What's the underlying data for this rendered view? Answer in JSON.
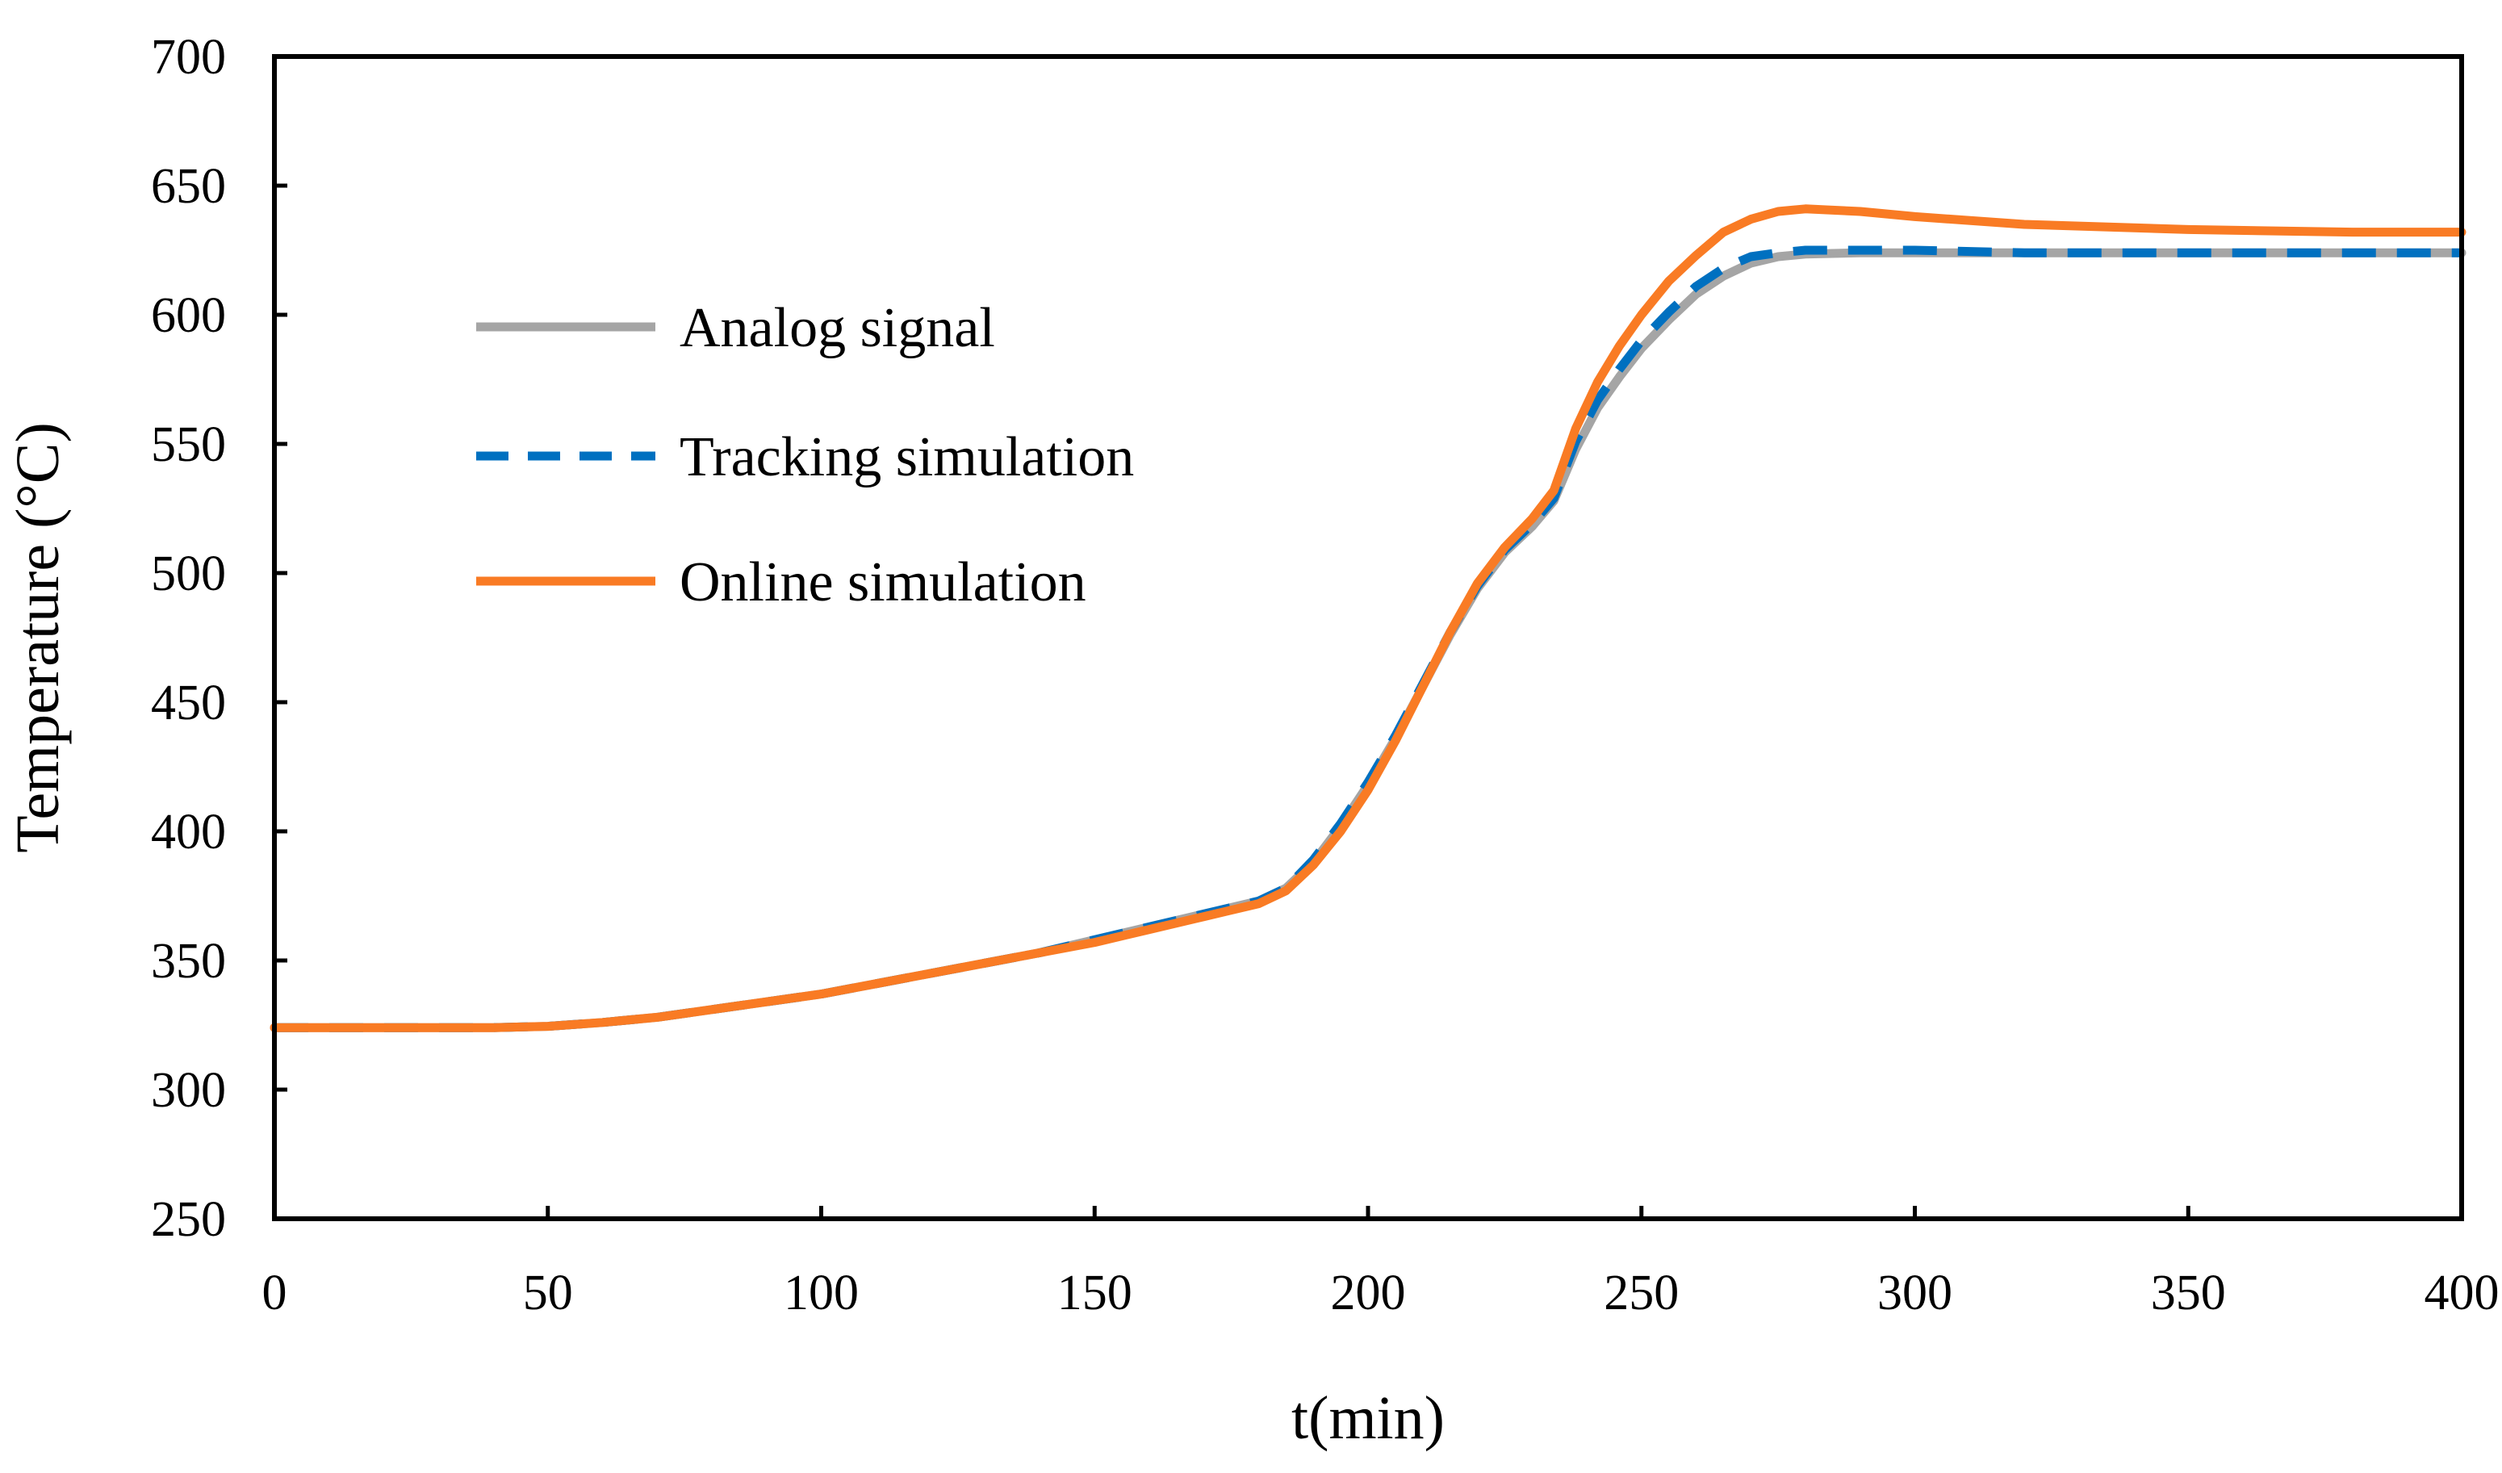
{
  "chart_data": {
    "type": "line",
    "title": "",
    "xlabel": "t(min)",
    "ylabel": "Temperature (°C)",
    "xlim": [
      0,
      400
    ],
    "ylim": [
      250,
      700
    ],
    "xticks": [
      0,
      50,
      100,
      150,
      200,
      250,
      300,
      350,
      400
    ],
    "yticks": [
      250,
      300,
      350,
      400,
      450,
      500,
      550,
      600,
      650,
      700
    ],
    "grid": false,
    "legend_position": "upper-left",
    "series": [
      {
        "name": "Analog signal",
        "color": "#A5A5A5",
        "style": "solid",
        "x": [
          0,
          20,
          40,
          50,
          60,
          70,
          80,
          90,
          100,
          110,
          120,
          130,
          140,
          150,
          160,
          170,
          180,
          185,
          190,
          195,
          200,
          205,
          210,
          215,
          220,
          225,
          230,
          234,
          238,
          242,
          246,
          250,
          255,
          260,
          265,
          270,
          275,
          280,
          290,
          300,
          320,
          350,
          380,
          400
        ],
        "y": [
          324,
          324,
          324,
          324.5,
          326,
          328,
          331,
          334,
          337,
          341,
          345,
          349,
          353,
          358,
          363,
          368,
          373,
          378,
          388,
          402,
          418,
          436,
          456,
          476,
          494,
          508,
          518,
          528,
          548,
          564,
          576,
          587,
          598,
          608,
          615,
          620,
          622.5,
          623.5,
          624,
          624,
          624,
          624,
          624,
          624
        ]
      },
      {
        "name": "Tracking simulation",
        "color": "#0070C0",
        "style": "dashed",
        "x": [
          0,
          20,
          40,
          50,
          60,
          70,
          80,
          90,
          100,
          110,
          120,
          130,
          140,
          150,
          160,
          170,
          180,
          185,
          190,
          195,
          200,
          205,
          210,
          215,
          220,
          225,
          230,
          234,
          238,
          242,
          246,
          250,
          255,
          260,
          265,
          270,
          275,
          280,
          290,
          300,
          320,
          350,
          380,
          400
        ],
        "y": [
          324,
          324,
          324,
          324.5,
          326,
          328,
          331,
          334,
          337,
          341,
          345,
          349,
          353,
          358,
          363,
          368,
          373,
          378,
          389,
          403,
          419,
          437,
          457,
          477,
          495,
          509,
          519,
          529,
          551,
          567,
          579,
          590,
          601,
          611,
          618,
          622.5,
          624,
          625,
          625,
          625,
          624,
          624,
          624,
          624
        ]
      },
      {
        "name": "Online simulation",
        "color": "#F97B24",
        "style": "solid",
        "x": [
          0,
          20,
          40,
          50,
          60,
          70,
          80,
          90,
          100,
          110,
          120,
          130,
          140,
          150,
          160,
          170,
          180,
          185,
          190,
          195,
          200,
          205,
          210,
          215,
          220,
          225,
          230,
          234,
          238,
          242,
          246,
          250,
          255,
          260,
          265,
          270,
          275,
          280,
          290,
          300,
          320,
          350,
          380,
          400
        ],
        "y": [
          324,
          324,
          324,
          324.5,
          326,
          328,
          331,
          334,
          337,
          341,
          345,
          349,
          353,
          357,
          362,
          367,
          372,
          377,
          387,
          400,
          416,
          435,
          456,
          477,
          496,
          510,
          521,
          532,
          556,
          574,
          588,
          600,
          613,
          623,
          632,
          637,
          640,
          641,
          640,
          638,
          635,
          633,
          632,
          632
        ]
      }
    ]
  }
}
